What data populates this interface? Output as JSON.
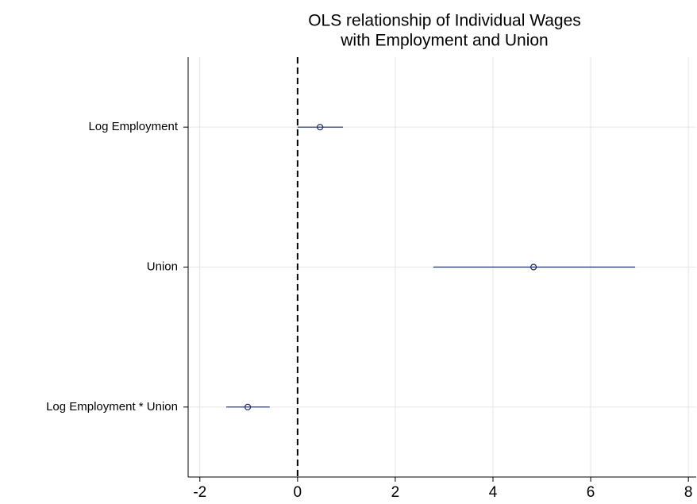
{
  "chart_data": {
    "type": "coefplot",
    "title": [
      "OLS relationship of Individual Wages",
      "with Employment and Union"
    ],
    "categories": [
      "Log Employment",
      "Union",
      "Log Employment * Union"
    ],
    "series": [
      {
        "name": null,
        "color": "#1a2b5f",
        "values": [
          0.46,
          4.83,
          -1.02
        ],
        "lower": [
          0.0,
          2.78,
          -1.46
        ],
        "upper": [
          0.93,
          6.91,
          -0.57
        ]
      }
    ],
    "xlim": [
      -2.24,
      8.16
    ],
    "xticks": [
      -2,
      0,
      2,
      4,
      6,
      8
    ],
    "refline": 0,
    "grid": true
  }
}
